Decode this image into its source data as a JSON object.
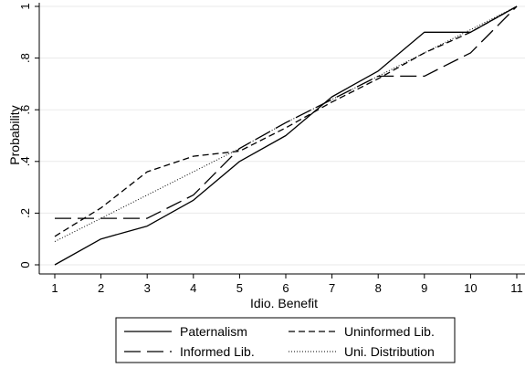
{
  "chart_data": {
    "type": "line",
    "title": "",
    "xlabel": "Idio. Benefit",
    "ylabel": "Probability",
    "x": [
      1,
      2,
      3,
      4,
      5,
      6,
      7,
      8,
      9,
      10,
      11
    ],
    "xlim": [
      1,
      11
    ],
    "ylim": [
      0,
      1
    ],
    "xticks": [
      "1",
      "2",
      "3",
      "4",
      "5",
      "6",
      "7",
      "8",
      "9",
      "10",
      "11"
    ],
    "yticks": [
      {
        "value": 0,
        "label": "0"
      },
      {
        "value": 0.2,
        "label": ".2"
      },
      {
        "value": 0.4,
        "label": ".4"
      },
      {
        "value": 0.6,
        "label": ".6"
      },
      {
        "value": 0.8,
        "label": ".8"
      },
      {
        "value": 1,
        "label": "1"
      }
    ],
    "grid": "horizontal",
    "legend_position": "bottom",
    "series": [
      {
        "name": "Paternalism",
        "style": "solid",
        "color": "#000000",
        "values": [
          0,
          0.1,
          0.15,
          0.25,
          0.4,
          0.5,
          0.65,
          0.75,
          0.9,
          0.9,
          1
        ]
      },
      {
        "name": "Uninformed Lib.",
        "style": "short-dash",
        "color": "#000000",
        "values": [
          0.11,
          0.22,
          0.36,
          0.42,
          0.44,
          0.53,
          0.63,
          0.72,
          0.82,
          0.9,
          1
        ]
      },
      {
        "name": "Informed Lib.",
        "style": "long-dash",
        "color": "#000000",
        "values": [
          0.18,
          0.18,
          0.18,
          0.27,
          0.45,
          0.55,
          0.64,
          0.73,
          0.73,
          0.82,
          1
        ]
      },
      {
        "name": "Uni. Distribution",
        "style": "dotted",
        "color": "#000000",
        "values": [
          0.09,
          0.18,
          0.27,
          0.36,
          0.45,
          0.55,
          0.64,
          0.73,
          0.82,
          0.91,
          1
        ]
      }
    ]
  }
}
